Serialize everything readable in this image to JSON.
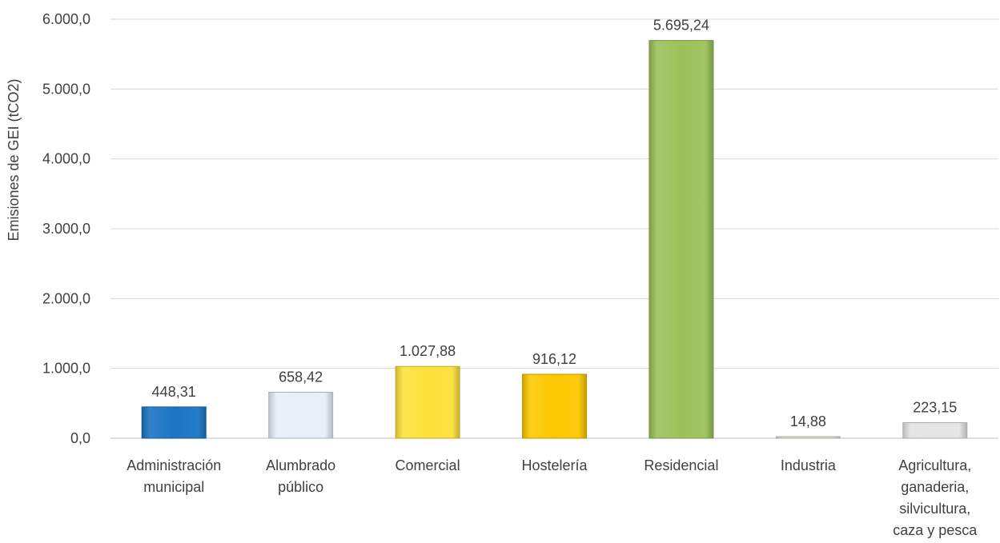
{
  "chart_data": {
    "type": "bar",
    "title": "",
    "xlabel": "",
    "ylabel": "Emisiones de GEI (tCO2)",
    "ylim": [
      0,
      6000
    ],
    "yticks": [
      "0,0",
      "1.000,0",
      "2.000,0",
      "3.000,0",
      "4.000,0",
      "5.000,0",
      "6.000,0"
    ],
    "grid": true,
    "legend": "none",
    "categories": [
      [
        "Administración",
        "municipal"
      ],
      [
        "Alumbrado",
        "público"
      ],
      [
        "Comercial"
      ],
      [
        "Hostelería"
      ],
      [
        "Residencial"
      ],
      [
        "Industria"
      ],
      [
        "Agricultura,",
        "ganaderia,",
        "silvicultura,",
        "caza y pesca"
      ]
    ],
    "values": [
      448.31,
      658.42,
      1027.88,
      916.12,
      5695.24,
      14.88,
      223.15
    ],
    "value_labels": [
      "448,31",
      "658,42",
      "1.027,88",
      "916,12",
      "5.695,24",
      "14,88",
      "223,15"
    ],
    "colors": [
      "#1b75c4",
      "#e6eef8",
      "#fde23a",
      "#fcc800",
      "#9bc25a",
      "#e8e2d6",
      "#e4e4e4"
    ]
  }
}
